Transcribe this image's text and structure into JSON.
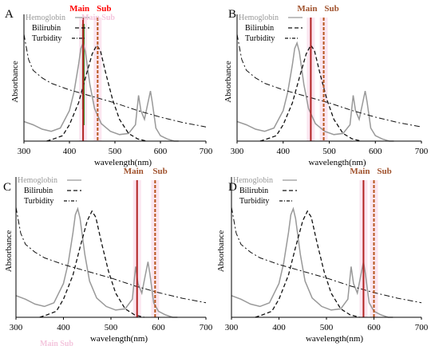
{
  "chart_data": [
    {
      "panel": "A",
      "type": "line",
      "xlabel": "wavelength(nm)",
      "ylabel": "Absorbance",
      "xlim": [
        300,
        700
      ],
      "xticks": [
        300,
        400,
        500,
        600,
        700
      ],
      "legend": [
        "Hemoglobin",
        "Bilirubin",
        "Turbidity"
      ],
      "legend_placement": "top-left",
      "legend_text_colors": [
        "#999999",
        "#000000",
        "#000000"
      ],
      "markers": [
        {
          "label": "Main",
          "wavelength": 430,
          "color": "#b22222",
          "label_color": "#ff0000"
        },
        {
          "label": "Sub",
          "wavelength": 462,
          "color": "#b8541c",
          "label_color": "#ff0000"
        }
      ],
      "extras": [
        {
          "kind": "green-spike",
          "wavelength": 432,
          "color": "#2e9e2e"
        },
        {
          "kind": "label-overlay",
          "text": "Main Sub",
          "color": "#f4c6dd",
          "placement": "legend"
        }
      ]
    },
    {
      "panel": "B",
      "type": "line",
      "xlabel": "wavelength(nm)",
      "ylabel": "Absorbance",
      "xlim": [
        300,
        700
      ],
      "xticks": [
        300,
        400,
        500,
        600,
        700
      ],
      "legend": [
        "Hemoglobin",
        "Bilirubin",
        "Turbidity"
      ],
      "legend_placement": "top-left",
      "legend_text_colors": [
        "#999999",
        "#000000",
        "#000000"
      ],
      "markers": [
        {
          "label": "Main",
          "wavelength": 460,
          "color": "#b22222",
          "label_color": "#a0522d"
        },
        {
          "label": "Sub",
          "wavelength": 488,
          "color": "#b8541c",
          "label_color": "#a0522d"
        }
      ]
    },
    {
      "panel": "C",
      "type": "line",
      "xlabel": "wavelength(nm)",
      "ylabel": "Absorbance",
      "xlim": [
        300,
        700
      ],
      "xticks": [
        300,
        400,
        500,
        600,
        700
      ],
      "legend": [
        "Hemoglobin",
        "Bilirubin",
        "Turbidity"
      ],
      "legend_placement": "top-left",
      "legend_text_colors": [
        "#999999",
        "#000000",
        "#000000"
      ],
      "markers": [
        {
          "label": "Main",
          "wavelength": 555,
          "color": "#b22222",
          "label_color": "#a0522d"
        },
        {
          "label": "Sub",
          "wavelength": 593,
          "color": "#b8541c",
          "label_color": "#a0522d"
        }
      ],
      "extras": [
        {
          "kind": "label-overlay",
          "text": "Main Sub",
          "color": "#f4c6dd",
          "placement": "below-axis"
        }
      ]
    },
    {
      "panel": "D",
      "type": "line",
      "xlabel": "wavelength(nm)",
      "ylabel": "Absorbance",
      "xlim": [
        300,
        700
      ],
      "xticks": [
        300,
        400,
        500,
        600,
        700
      ],
      "legend": [
        "Hemoglobin",
        "Bilirubin",
        "Turbidity"
      ],
      "legend_placement": "top-left",
      "legend_text_colors": [
        "#999999",
        "#000000",
        "#000000"
      ],
      "markers": [
        {
          "label": "Main",
          "wavelength": 578,
          "color": "#b22222",
          "label_color": "#a0522d"
        },
        {
          "label": "Sub",
          "wavelength": 600,
          "color": "#b8541c",
          "label_color": "#a0522d"
        }
      ]
    }
  ],
  "curve_shapes": {
    "hemoglobin": [
      [
        300,
        0.18
      ],
      [
        320,
        0.15
      ],
      [
        340,
        0.11
      ],
      [
        360,
        0.09
      ],
      [
        380,
        0.12
      ],
      [
        400,
        0.28
      ],
      [
        410,
        0.45
      ],
      [
        420,
        0.7
      ],
      [
        425,
        0.85
      ],
      [
        430,
        0.9
      ],
      [
        435,
        0.82
      ],
      [
        445,
        0.52
      ],
      [
        455,
        0.3
      ],
      [
        470,
        0.16
      ],
      [
        490,
        0.09
      ],
      [
        510,
        0.06
      ],
      [
        530,
        0.07
      ],
      [
        545,
        0.15
      ],
      [
        552,
        0.42
      ],
      [
        557,
        0.28
      ],
      [
        565,
        0.2
      ],
      [
        572,
        0.34
      ],
      [
        578,
        0.46
      ],
      [
        582,
        0.36
      ],
      [
        590,
        0.12
      ],
      [
        600,
        0.05
      ],
      [
        615,
        0.02
      ],
      [
        630,
        0.0
      ],
      [
        640,
        0.0
      ]
    ],
    "bilirubin": [
      [
        350,
        0.0
      ],
      [
        365,
        0.02
      ],
      [
        385,
        0.05
      ],
      [
        400,
        0.15
      ],
      [
        420,
        0.35
      ],
      [
        435,
        0.58
      ],
      [
        450,
        0.8
      ],
      [
        460,
        0.88
      ],
      [
        468,
        0.83
      ],
      [
        480,
        0.62
      ],
      [
        495,
        0.38
      ],
      [
        510,
        0.2
      ],
      [
        530,
        0.07
      ],
      [
        550,
        0.02
      ],
      [
        570,
        0.0
      ]
    ],
    "turbidity": [
      [
        300,
        0.98
      ],
      [
        310,
        0.75
      ],
      [
        320,
        0.65
      ],
      [
        340,
        0.58
      ],
      [
        360,
        0.53
      ],
      [
        400,
        0.47
      ],
      [
        450,
        0.41
      ],
      [
        500,
        0.35
      ],
      [
        550,
        0.28
      ],
      [
        600,
        0.22
      ],
      [
        650,
        0.17
      ],
      [
        700,
        0.13
      ]
    ]
  }
}
